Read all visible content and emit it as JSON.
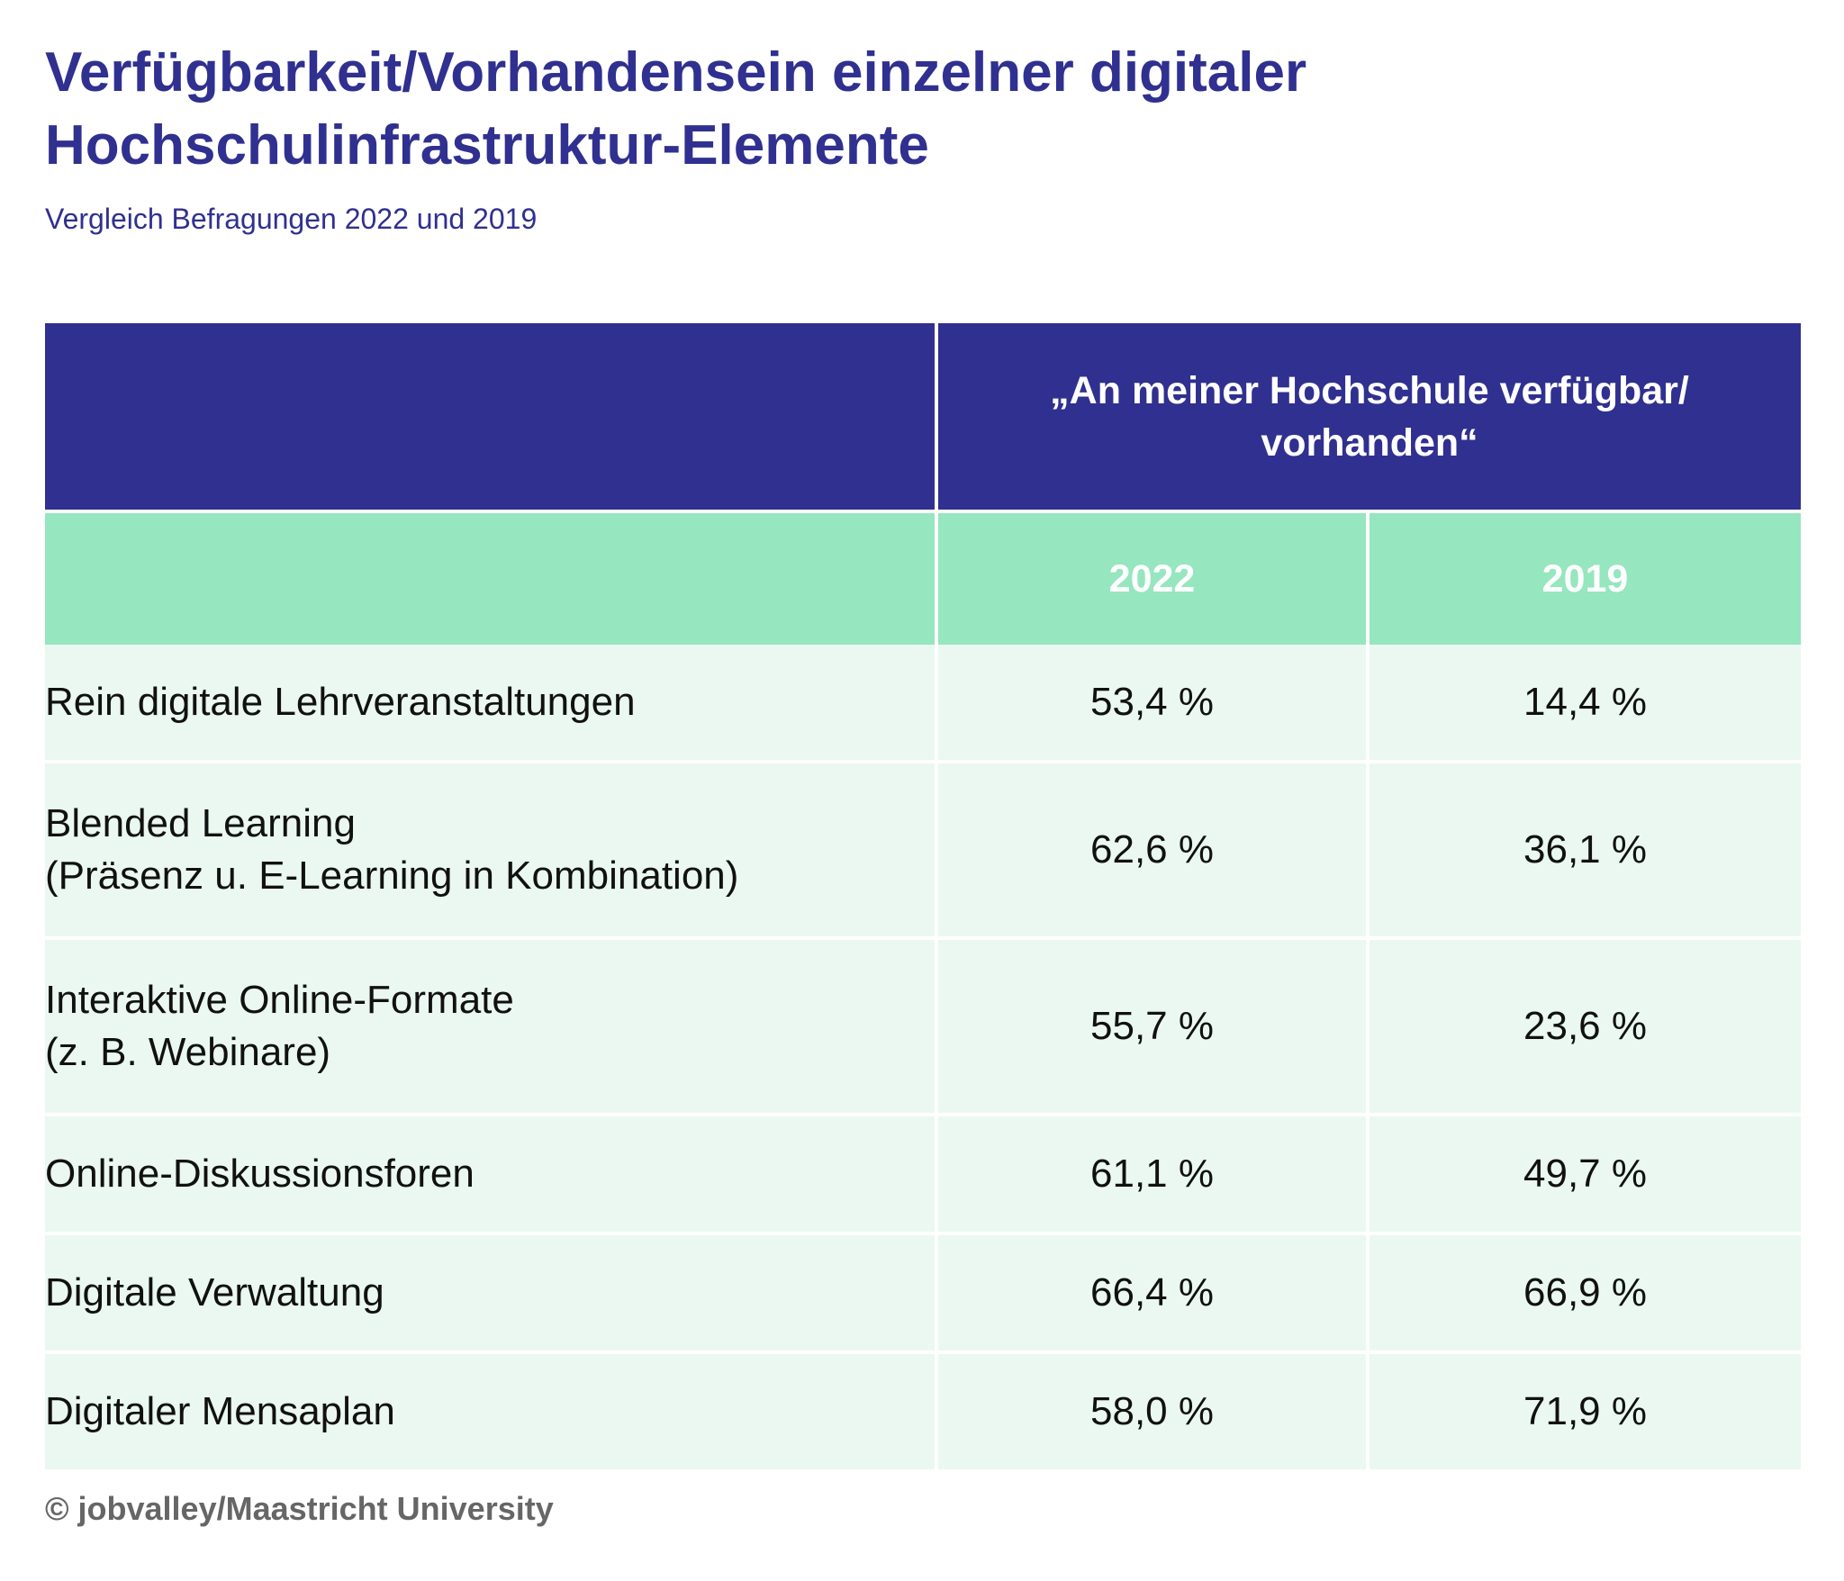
{
  "header": {
    "title": [
      "Verfügbarkeit/Vorhandensein einzelner digitaler",
      "Hochschulinfrastruktur-Elemente"
    ],
    "subtitle": "Vergleich Befragungen 2022 und 2019"
  },
  "table": {
    "group_header": [
      "„An meiner Hochschule verfügbar/",
      "vorhanden“"
    ],
    "columns": [
      "2022",
      "2019"
    ],
    "rows": [
      {
        "label": [
          "Rein digitale Lehrveranstaltungen"
        ],
        "values": [
          "53,4 %",
          "14,4 %"
        ]
      },
      {
        "label": [
          "Blended Learning",
          "(Präsenz u. E-Learning in Kombination)"
        ],
        "values": [
          "62,6 %",
          "36,1 %"
        ]
      },
      {
        "label": [
          "Interaktive Online-Formate",
          "(z. B. Webinare)"
        ],
        "values": [
          "55,7 %",
          "23,6 %"
        ]
      },
      {
        "label": [
          "Online-Diskussionsforen"
        ],
        "values": [
          "61,1 %",
          "49,7 %"
        ]
      },
      {
        "label": [
          "Digitale Verwaltung"
        ],
        "values": [
          "66,4 %",
          "66,9 %"
        ]
      },
      {
        "label": [
          "Digitaler Mensaplan"
        ],
        "values": [
          "58,0 %",
          "71,9 %"
        ]
      }
    ]
  },
  "footer": {
    "credit": "© jobvalley/Maastricht University"
  }
}
